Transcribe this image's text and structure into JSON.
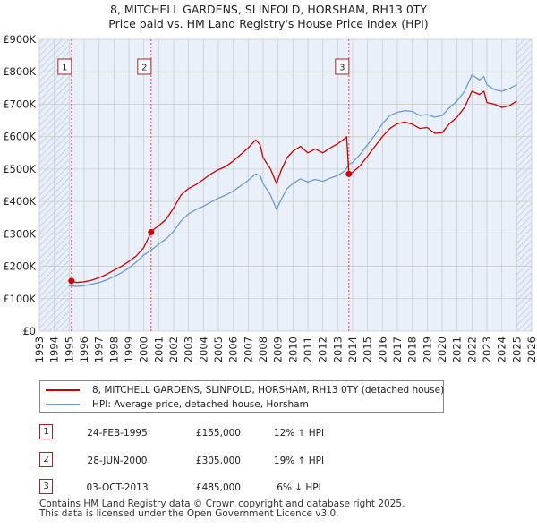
{
  "title_line1": "8, MITCHELL GARDENS, SLINFOLD, HORSHAM, RH13 0TY",
  "title_line2": "Price paid vs. HM Land Registry's House Price Index (HPI)",
  "colors": {
    "property_line": "#cc0000",
    "hpi_line": "#6a9ad4",
    "background": "#ffffff",
    "plot_background": "#eaf0fa",
    "grid": "#cccccc",
    "marker_vline": "#dd4444"
  },
  "chart_data": {
    "type": "line",
    "title": "8, MITCHELL GARDENS, SLINFOLD, HORSHAM, RH13 0TY — Price paid vs. HM Land Registry's House Price Index (HPI)",
    "xlabel": "",
    "ylabel": "",
    "xlim": [
      1993,
      2026
    ],
    "ylim": [
      0,
      900000
    ],
    "x_ticks": [
      1993,
      1994,
      1995,
      1996,
      1997,
      1998,
      1999,
      2000,
      2001,
      2002,
      2003,
      2004,
      2005,
      2006,
      2007,
      2008,
      2009,
      2010,
      2011,
      2012,
      2013,
      2014,
      2015,
      2016,
      2017,
      2018,
      2019,
      2020,
      2021,
      2022,
      2023,
      2024,
      2025,
      2026
    ],
    "y_ticks": [
      0,
      100000,
      200000,
      300000,
      400000,
      500000,
      600000,
      700000,
      800000,
      900000
    ],
    "y_tick_labels": [
      "£0",
      "£100K",
      "£200K",
      "£300K",
      "£400K",
      "£500K",
      "£600K",
      "£700K",
      "£800K",
      "£900K"
    ],
    "grid": true,
    "hatched_regions": [
      [
        1993,
        1995.0
      ],
      [
        2025.0,
        2026
      ]
    ],
    "series": [
      {
        "name": "8, MITCHELL GARDENS, SLINFOLD, HORSHAM, RH13 0TY (detached house)",
        "x": [
          1995.15,
          1995.5,
          1996.0,
          1996.5,
          1997.0,
          1997.5,
          1998.0,
          1998.5,
          1999.0,
          1999.5,
          2000.0,
          2000.49,
          2000.5,
          2001.0,
          2001.5,
          2002.0,
          2002.5,
          2003.0,
          2003.5,
          2004.0,
          2004.5,
          2005.0,
          2005.5,
          2006.0,
          2006.5,
          2007.0,
          2007.5,
          2007.8,
          2008.0,
          2008.5,
          2008.9,
          2009.2,
          2009.6,
          2010.0,
          2010.5,
          2011.0,
          2011.5,
          2012.0,
          2012.5,
          2013.0,
          2013.5,
          2013.6,
          2013.75,
          2014.0,
          2014.5,
          2015.0,
          2015.5,
          2016.0,
          2016.5,
          2017.0,
          2017.5,
          2018.0,
          2018.5,
          2019.0,
          2019.5,
          2020.0,
          2020.5,
          2021.0,
          2021.5,
          2022.0,
          2022.5,
          2022.8,
          2023.0,
          2023.5,
          2024.0,
          2024.5,
          2025.0
        ],
        "values": [
          155000,
          150000,
          152000,
          157000,
          165000,
          175000,
          188000,
          200000,
          215000,
          232000,
          258000,
          305000,
          308000,
          325000,
          345000,
          380000,
          420000,
          440000,
          452000,
          468000,
          485000,
          498000,
          508000,
          525000,
          545000,
          565000,
          590000,
          575000,
          535000,
          500000,
          455000,
          495000,
          535000,
          555000,
          570000,
          550000,
          562000,
          550000,
          565000,
          578000,
          595000,
          600000,
          485000,
          490000,
          510000,
          540000,
          570000,
          600000,
          625000,
          640000,
          645000,
          638000,
          625000,
          628000,
          610000,
          612000,
          640000,
          660000,
          690000,
          740000,
          730000,
          740000,
          705000,
          700000,
          690000,
          695000,
          710000
        ]
      },
      {
        "name": "HPI: Average price, detached house, Horsham",
        "x": [
          1995.0,
          1995.5,
          1996.0,
          1996.5,
          1997.0,
          1997.5,
          1998.0,
          1998.5,
          1999.0,
          1999.5,
          2000.0,
          2000.5,
          2001.0,
          2001.5,
          2002.0,
          2002.5,
          2003.0,
          2003.5,
          2004.0,
          2004.5,
          2005.0,
          2005.5,
          2006.0,
          2006.5,
          2007.0,
          2007.5,
          2007.8,
          2008.0,
          2008.5,
          2008.9,
          2009.2,
          2009.6,
          2010.0,
          2010.5,
          2011.0,
          2011.5,
          2012.0,
          2012.5,
          2013.0,
          2013.5,
          2013.75,
          2014.0,
          2014.5,
          2015.0,
          2015.5,
          2016.0,
          2016.5,
          2017.0,
          2017.5,
          2018.0,
          2018.5,
          2019.0,
          2019.5,
          2020.0,
          2020.5,
          2021.0,
          2021.5,
          2022.0,
          2022.5,
          2022.8,
          2023.0,
          2023.5,
          2024.0,
          2024.5,
          2025.0
        ],
        "values": [
          140000,
          138000,
          140000,
          145000,
          150000,
          158000,
          168000,
          180000,
          195000,
          213000,
          235000,
          250000,
          268000,
          285000,
          308000,
          340000,
          362000,
          375000,
          385000,
          398000,
          410000,
          420000,
          432000,
          448000,
          465000,
          485000,
          480000,
          455000,
          420000,
          375000,
          405000,
          440000,
          455000,
          470000,
          460000,
          468000,
          462000,
          472000,
          480000,
          495000,
          515000,
          520000,
          545000,
          575000,
          605000,
          640000,
          665000,
          675000,
          680000,
          678000,
          665000,
          668000,
          660000,
          665000,
          690000,
          710000,
          740000,
          790000,
          775000,
          785000,
          760000,
          745000,
          740000,
          748000,
          760000
        ]
      }
    ],
    "markers": [
      {
        "label": "1",
        "x": 1995.15,
        "value": 155000
      },
      {
        "label": "2",
        "x": 2000.49,
        "value": 305000
      },
      {
        "label": "3",
        "x": 2013.75,
        "value": 485000
      }
    ]
  },
  "legend": {
    "items": [
      {
        "label": "8, MITCHELL GARDENS, SLINFOLD, HORSHAM, RH13 0TY (detached house)"
      },
      {
        "label": "HPI: Average price, detached house, Horsham"
      }
    ]
  },
  "sales": [
    {
      "num": "1",
      "date": "24-FEB-1995",
      "price": "£155,000",
      "hpi": "12% ↑ HPI"
    },
    {
      "num": "2",
      "date": "28-JUN-2000",
      "price": "£305,000",
      "hpi": "19% ↑ HPI"
    },
    {
      "num": "3",
      "date": "03-OCT-2013",
      "price": "£485,000",
      "hpi": "6% ↓ HPI"
    }
  ],
  "footer": {
    "line1": "Contains HM Land Registry data © Crown copyright and database right 2025.",
    "line2": "This data is licensed under the Open Government Licence v3.0."
  }
}
